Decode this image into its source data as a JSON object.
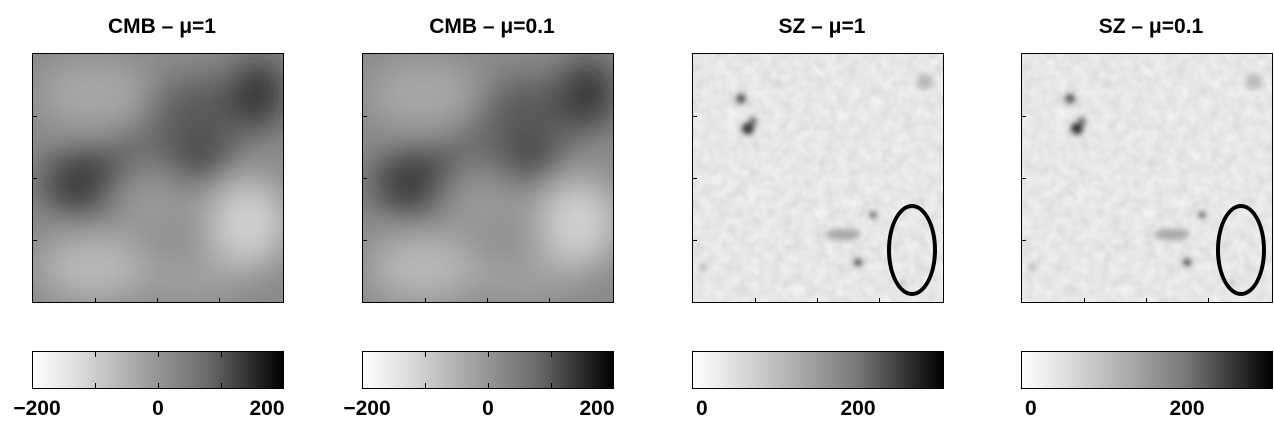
{
  "panels": [
    {
      "title": "CMB – μ=1",
      "map_kind": "cmb",
      "colorbar_labels": [
        "−200",
        "0",
        "200"
      ],
      "highlight": false
    },
    {
      "title": "CMB – μ=0.1",
      "map_kind": "cmb",
      "colorbar_labels": [
        "−200",
        "0",
        "200"
      ],
      "highlight": false
    },
    {
      "title": "SZ – μ=1",
      "map_kind": "sz",
      "colorbar_labels": [
        "0",
        "200"
      ],
      "highlight": true
    },
    {
      "title": "SZ – μ=0.1",
      "map_kind": "sz",
      "colorbar_labels": [
        "0",
        "200"
      ],
      "highlight": true
    }
  ],
  "colors": {
    "background": "#ffffff",
    "foreground": "#000000"
  }
}
